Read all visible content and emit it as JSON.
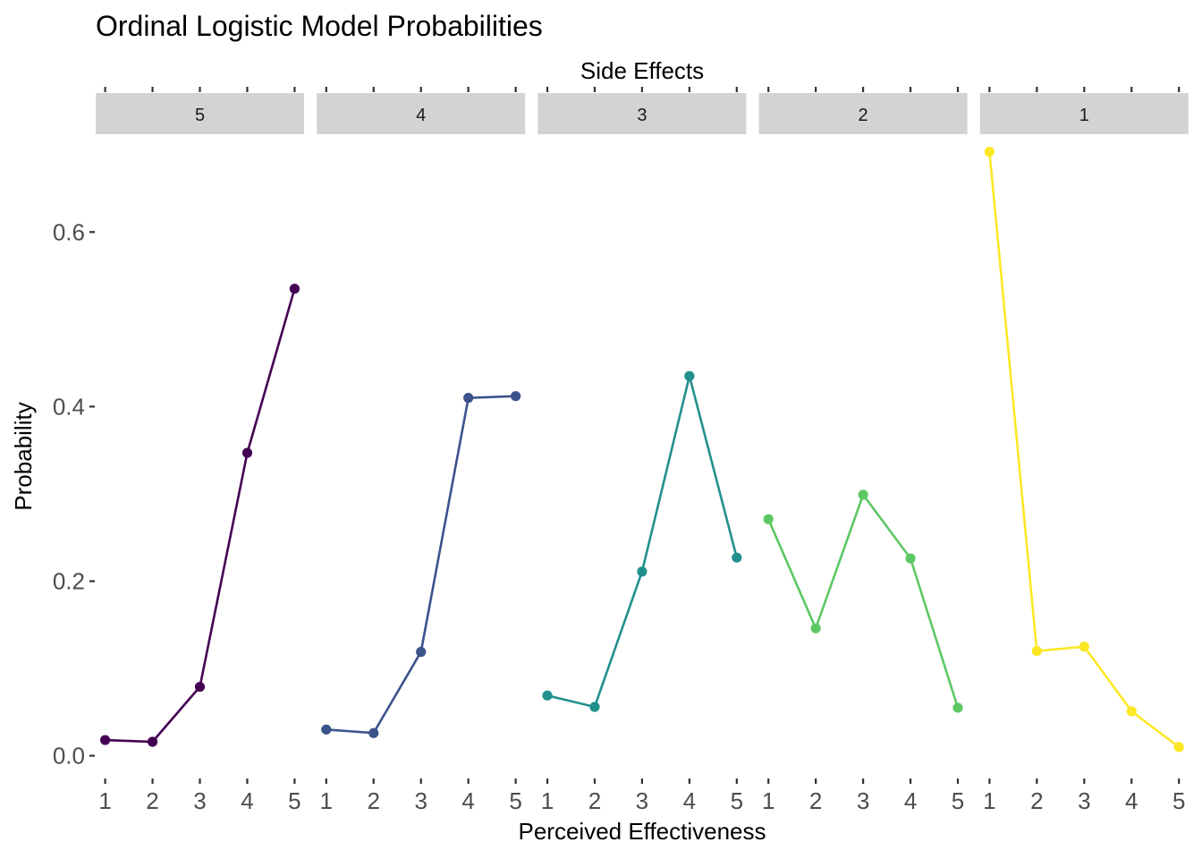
{
  "chart_data": {
    "type": "line",
    "title": "Ordinal Logistic Model Probabilities",
    "facet_title": "Side Effects",
    "xlabel": "Perceived Effectiveness",
    "ylabel": "Probability",
    "x": [
      1,
      2,
      3,
      4,
      5
    ],
    "x_tick_labels": [
      "1",
      "2",
      "3",
      "4",
      "5"
    ],
    "y_ticks": [
      0.0,
      0.2,
      0.4,
      0.6
    ],
    "y_tick_labels": [
      "0.0",
      "0.2",
      "0.4",
      "0.6"
    ],
    "ylim": [
      -0.025,
      0.71
    ],
    "grid": false,
    "legend": "none",
    "facets": [
      {
        "label": "5",
        "color": "#440154",
        "values": [
          0.018,
          0.016,
          0.079,
          0.347,
          0.535
        ]
      },
      {
        "label": "4",
        "color": "#3B528B",
        "values": [
          0.03,
          0.026,
          0.119,
          0.41,
          0.412
        ]
      },
      {
        "label": "3",
        "color": "#21908C",
        "values": [
          0.069,
          0.056,
          0.211,
          0.435,
          0.227
        ]
      },
      {
        "label": "2",
        "color": "#5DC863",
        "values": [
          0.271,
          0.146,
          0.299,
          0.226,
          0.055
        ]
      },
      {
        "label": "1",
        "color": "#FDE725",
        "values": [
          0.692,
          0.12,
          0.125,
          0.051,
          0.01
        ]
      }
    ]
  }
}
